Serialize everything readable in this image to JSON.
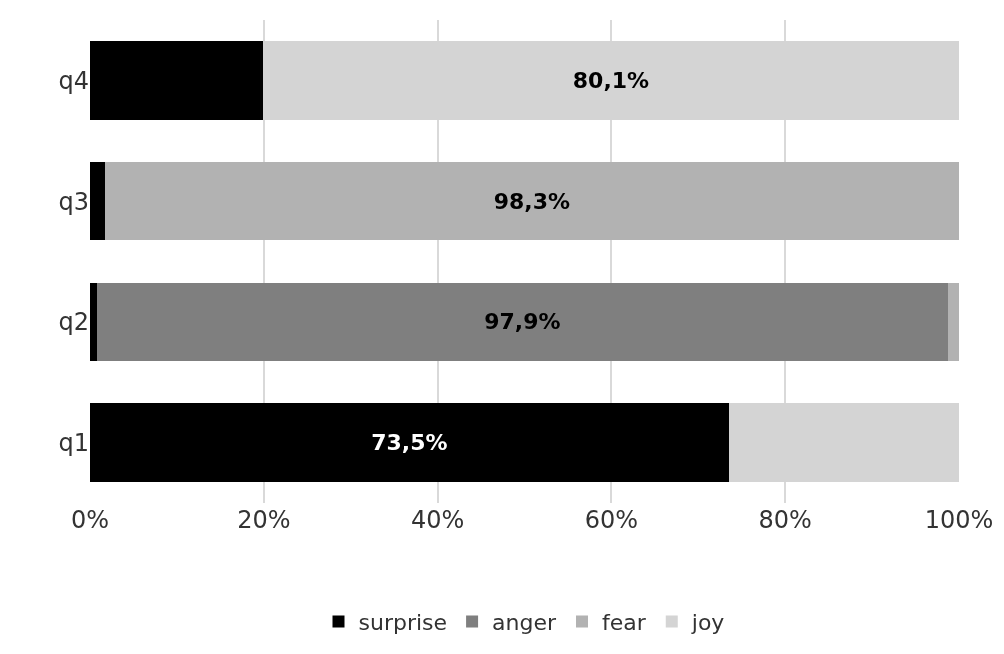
{
  "chart_data": {
    "type": "bar",
    "orientation": "horizontal",
    "stacked": true,
    "categories": [
      "q4",
      "q3",
      "q2",
      "q1"
    ],
    "series": [
      {
        "name": "surprise",
        "color": "#000000",
        "values": [
          19.9,
          1.7,
          0.8,
          73.5
        ],
        "value_labels": [
          null,
          null,
          null,
          "73,5%"
        ]
      },
      {
        "name": "anger",
        "color": "#7f7f7f",
        "values": [
          0,
          0,
          97.9,
          0
        ],
        "value_labels": [
          null,
          null,
          "97,9%",
          null
        ]
      },
      {
        "name": "fear",
        "color": "#b2b2b2",
        "values": [
          0,
          98.3,
          1.3,
          0
        ],
        "value_labels": [
          null,
          "98,3%",
          null,
          null
        ]
      },
      {
        "name": "joy",
        "color": "#d4d4d4",
        "values": [
          80.1,
          0,
          0,
          26.5
        ],
        "value_labels": [
          "80,1%",
          null,
          null,
          null
        ]
      }
    ],
    "xlim": [
      0,
      100
    ],
    "xticks": [
      {
        "value": 0,
        "label": "0%"
      },
      {
        "value": 20,
        "label": "20%"
      },
      {
        "value": 40,
        "label": "40%"
      },
      {
        "value": 60,
        "label": "60%"
      },
      {
        "value": 80,
        "label": "80%"
      },
      {
        "value": 100,
        "label": "100%"
      }
    ],
    "grid": "x",
    "legend": "bottom"
  }
}
